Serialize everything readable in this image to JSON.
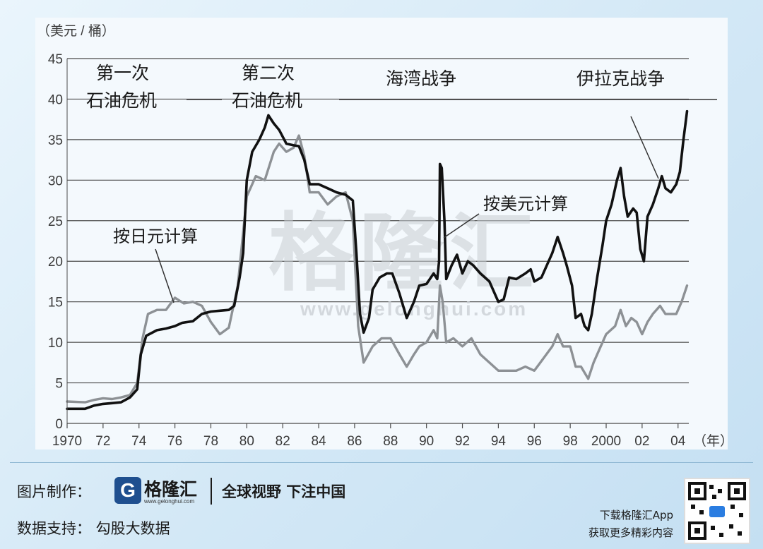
{
  "chart_data": {
    "type": "line",
    "ylabel": "（美元 / 桶）",
    "xlabel": "（年）",
    "ylim": [
      0,
      45
    ],
    "yticks": [
      0,
      5,
      10,
      15,
      20,
      25,
      30,
      35,
      40,
      45
    ],
    "xlim": [
      1970,
      2004.6
    ],
    "xticks": [
      {
        "v": 1970,
        "label": "1970"
      },
      {
        "v": 1972,
        "label": "72"
      },
      {
        "v": 1974,
        "label": "74"
      },
      {
        "v": 1976,
        "label": "76"
      },
      {
        "v": 1978,
        "label": "78"
      },
      {
        "v": 1980,
        "label": "80"
      },
      {
        "v": 1982,
        "label": "82"
      },
      {
        "v": 1984,
        "label": "84"
      },
      {
        "v": 1986,
        "label": "86"
      },
      {
        "v": 1988,
        "label": "88"
      },
      {
        "v": 1990,
        "label": "90"
      },
      {
        "v": 1992,
        "label": "92"
      },
      {
        "v": 1994,
        "label": "94"
      },
      {
        "v": 1996,
        "label": "96"
      },
      {
        "v": 1998,
        "label": "98"
      },
      {
        "v": 2000,
        "label": "2000"
      },
      {
        "v": 2002,
        "label": "02"
      },
      {
        "v": 2004,
        "label": "04"
      }
    ],
    "grid": "horizontal",
    "series": [
      {
        "name": "按美元计算",
        "color": "#111111",
        "points": [
          [
            1970.0,
            1.8
          ],
          [
            1971.0,
            1.8
          ],
          [
            1971.5,
            2.2
          ],
          [
            1972.0,
            2.4
          ],
          [
            1972.5,
            2.5
          ],
          [
            1973.0,
            2.6
          ],
          [
            1973.5,
            3.2
          ],
          [
            1973.9,
            4.2
          ],
          [
            1974.1,
            8.5
          ],
          [
            1974.4,
            10.8
          ],
          [
            1975.0,
            11.5
          ],
          [
            1975.5,
            11.7
          ],
          [
            1976.0,
            12.0
          ],
          [
            1976.4,
            12.4
          ],
          [
            1977.0,
            12.6
          ],
          [
            1977.5,
            13.5
          ],
          [
            1978.0,
            13.8
          ],
          [
            1978.5,
            13.9
          ],
          [
            1979.0,
            14.0
          ],
          [
            1979.3,
            14.5
          ],
          [
            1979.6,
            18.0
          ],
          [
            1979.8,
            21.0
          ],
          [
            1980.0,
            30.0
          ],
          [
            1980.3,
            33.5
          ],
          [
            1980.7,
            35.0
          ],
          [
            1981.0,
            36.5
          ],
          [
            1981.2,
            38.0
          ],
          [
            1981.5,
            37.0
          ],
          [
            1981.8,
            36.2
          ],
          [
            1982.2,
            34.5
          ],
          [
            1982.6,
            34.3
          ],
          [
            1982.9,
            34.2
          ],
          [
            1983.2,
            32.5
          ],
          [
            1983.5,
            29.5
          ],
          [
            1984.0,
            29.5
          ],
          [
            1984.5,
            29.0
          ],
          [
            1985.0,
            28.5
          ],
          [
            1985.5,
            28.2
          ],
          [
            1985.9,
            27.5
          ],
          [
            1986.1,
            21.0
          ],
          [
            1986.3,
            13.5
          ],
          [
            1986.5,
            11.2
          ],
          [
            1986.8,
            13.0
          ],
          [
            1987.0,
            16.5
          ],
          [
            1987.4,
            18.0
          ],
          [
            1987.8,
            18.5
          ],
          [
            1988.1,
            18.5
          ],
          [
            1988.5,
            16.0
          ],
          [
            1988.9,
            13.0
          ],
          [
            1989.3,
            15.0
          ],
          [
            1989.6,
            17.0
          ],
          [
            1990.0,
            17.2
          ],
          [
            1990.4,
            18.5
          ],
          [
            1990.6,
            17.8
          ],
          [
            1990.7,
            20.0
          ],
          [
            1990.75,
            32.0
          ],
          [
            1990.85,
            31.5
          ],
          [
            1991.0,
            25.0
          ],
          [
            1991.1,
            17.8
          ],
          [
            1991.4,
            19.5
          ],
          [
            1991.7,
            20.8
          ],
          [
            1992.0,
            18.5
          ],
          [
            1992.3,
            20.0
          ],
          [
            1992.6,
            19.5
          ],
          [
            1993.0,
            18.5
          ],
          [
            1993.5,
            17.5
          ],
          [
            1994.0,
            15.0
          ],
          [
            1994.3,
            15.3
          ],
          [
            1994.6,
            18.0
          ],
          [
            1995.0,
            17.8
          ],
          [
            1995.5,
            18.5
          ],
          [
            1995.8,
            19.0
          ],
          [
            1996.0,
            17.5
          ],
          [
            1996.4,
            18.0
          ],
          [
            1996.8,
            20.0
          ],
          [
            1997.0,
            21.0
          ],
          [
            1997.3,
            23.0
          ],
          [
            1997.6,
            21.0
          ],
          [
            1997.8,
            19.5
          ],
          [
            1998.1,
            17.0
          ],
          [
            1998.3,
            13.0
          ],
          [
            1998.6,
            13.5
          ],
          [
            1998.8,
            12.0
          ],
          [
            1999.0,
            11.5
          ],
          [
            1999.2,
            13.5
          ],
          [
            1999.5,
            18.0
          ],
          [
            1999.8,
            22.0
          ],
          [
            2000.0,
            25.0
          ],
          [
            2000.3,
            27.0
          ],
          [
            2000.6,
            30.0
          ],
          [
            2000.8,
            31.5
          ],
          [
            2001.0,
            28.0
          ],
          [
            2001.2,
            25.5
          ],
          [
            2001.5,
            26.5
          ],
          [
            2001.7,
            26.0
          ],
          [
            2001.9,
            21.5
          ],
          [
            2002.1,
            20.0
          ],
          [
            2002.3,
            25.5
          ],
          [
            2002.6,
            27.0
          ],
          [
            2002.9,
            29.0
          ],
          [
            2003.1,
            30.5
          ],
          [
            2003.3,
            29.0
          ],
          [
            2003.6,
            28.5
          ],
          [
            2003.9,
            29.5
          ],
          [
            2004.1,
            31.0
          ],
          [
            2004.3,
            35.0
          ],
          [
            2004.5,
            38.5
          ]
        ]
      },
      {
        "name": "按日元计算",
        "color": "#8d9195",
        "points": [
          [
            1970.0,
            2.7
          ],
          [
            1971.0,
            2.6
          ],
          [
            1971.5,
            2.9
          ],
          [
            1972.0,
            3.1
          ],
          [
            1972.5,
            3.0
          ],
          [
            1973.0,
            3.2
          ],
          [
            1973.5,
            3.5
          ],
          [
            1973.9,
            5.0
          ],
          [
            1974.2,
            10.5
          ],
          [
            1974.5,
            13.5
          ],
          [
            1975.0,
            14.0
          ],
          [
            1975.5,
            14.0
          ],
          [
            1976.0,
            15.5
          ],
          [
            1976.5,
            14.8
          ],
          [
            1977.0,
            15.0
          ],
          [
            1977.5,
            14.5
          ],
          [
            1978.0,
            12.5
          ],
          [
            1978.5,
            11.0
          ],
          [
            1979.0,
            11.8
          ],
          [
            1979.5,
            17.0
          ],
          [
            1980.0,
            28.0
          ],
          [
            1980.5,
            30.5
          ],
          [
            1981.0,
            30.0
          ],
          [
            1981.5,
            33.5
          ],
          [
            1981.8,
            34.5
          ],
          [
            1982.2,
            33.5
          ],
          [
            1982.6,
            34.0
          ],
          [
            1982.9,
            35.5
          ],
          [
            1983.2,
            33.0
          ],
          [
            1983.5,
            28.5
          ],
          [
            1984.0,
            28.5
          ],
          [
            1984.5,
            27.0
          ],
          [
            1985.0,
            28.0
          ],
          [
            1985.5,
            28.5
          ],
          [
            1985.9,
            25.0
          ],
          [
            1986.2,
            12.0
          ],
          [
            1986.5,
            7.5
          ],
          [
            1987.0,
            9.5
          ],
          [
            1987.5,
            10.5
          ],
          [
            1988.0,
            10.5
          ],
          [
            1988.5,
            8.5
          ],
          [
            1988.9,
            7.0
          ],
          [
            1989.3,
            8.5
          ],
          [
            1989.6,
            9.5
          ],
          [
            1990.0,
            10.0
          ],
          [
            1990.4,
            11.5
          ],
          [
            1990.6,
            10.5
          ],
          [
            1990.75,
            17.0
          ],
          [
            1990.9,
            15.0
          ],
          [
            1991.1,
            10.0
          ],
          [
            1991.5,
            10.5
          ],
          [
            1992.0,
            9.5
          ],
          [
            1992.5,
            10.5
          ],
          [
            1993.0,
            8.5
          ],
          [
            1993.5,
            7.5
          ],
          [
            1994.0,
            6.5
          ],
          [
            1994.5,
            6.5
          ],
          [
            1995.0,
            6.5
          ],
          [
            1995.5,
            7.0
          ],
          [
            1996.0,
            6.5
          ],
          [
            1996.5,
            8.0
          ],
          [
            1997.0,
            9.5
          ],
          [
            1997.3,
            11.0
          ],
          [
            1997.6,
            9.5
          ],
          [
            1998.0,
            9.5
          ],
          [
            1998.3,
            7.0
          ],
          [
            1998.6,
            7.0
          ],
          [
            1999.0,
            5.5
          ],
          [
            1999.3,
            7.5
          ],
          [
            1999.6,
            9.0
          ],
          [
            2000.0,
            11.0
          ],
          [
            2000.5,
            12.0
          ],
          [
            2000.8,
            14.0
          ],
          [
            2001.1,
            12.0
          ],
          [
            2001.4,
            13.0
          ],
          [
            2001.7,
            12.5
          ],
          [
            2002.0,
            11.0
          ],
          [
            2002.3,
            12.5
          ],
          [
            2002.6,
            13.5
          ],
          [
            2003.0,
            14.5
          ],
          [
            2003.3,
            13.5
          ],
          [
            2003.6,
            13.5
          ],
          [
            2003.9,
            13.5
          ],
          [
            2004.2,
            15.0
          ],
          [
            2004.5,
            17.0
          ]
        ]
      }
    ],
    "annotations": {
      "first_crisis_1": "第一次",
      "first_crisis_2": "石油危机",
      "second_crisis_1": "第二次",
      "second_crisis_2": "石油危机",
      "gulf_war": "海湾战争",
      "iraq_war": "伊拉克战争",
      "usd_label": "按美元计算",
      "jpy_label": "按日元计算"
    }
  },
  "watermark": {
    "name": "格隆汇",
    "url": "www.gelonghui.com"
  },
  "footer": {
    "credit_label": "图片制作：",
    "logo_mark": "G",
    "logo_name": "格隆汇",
    "logo_url": "www.gelonghui.com",
    "slogan": "全球视野 下注中国",
    "support": "数据支持： 勾股大数据",
    "app_line1": "下载格隆汇App",
    "app_line2": "获取更多精彩内容"
  }
}
